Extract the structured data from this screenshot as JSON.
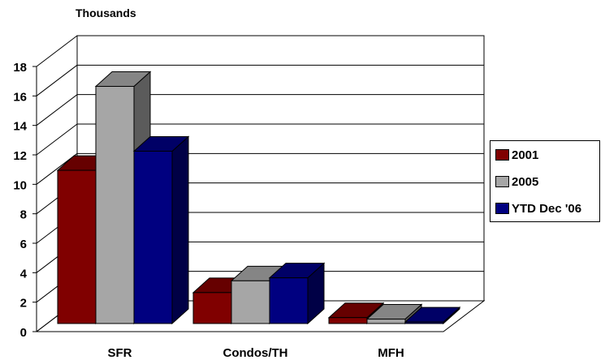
{
  "chart_data": {
    "type": "bar",
    "title": "Thousands",
    "categories": [
      "SFR",
      "Condos/TH",
      "MFH"
    ],
    "series": [
      {
        "name": "2001",
        "values": [
          10.4,
          2.1,
          0.4
        ],
        "color": "#800000"
      },
      {
        "name": "2005",
        "values": [
          16.1,
          2.9,
          0.3
        ],
        "color": "#a6a6a6"
      },
      {
        "name": "YTD Dec '06",
        "values": [
          11.7,
          3.1,
          0.1
        ],
        "color": "#000080"
      }
    ],
    "ylim": [
      0,
      18
    ],
    "yticks": [
      "0",
      "2",
      "4",
      "6",
      "8",
      "10",
      "12",
      "14",
      "16",
      "18"
    ],
    "grid": true,
    "legend_position": "right"
  }
}
